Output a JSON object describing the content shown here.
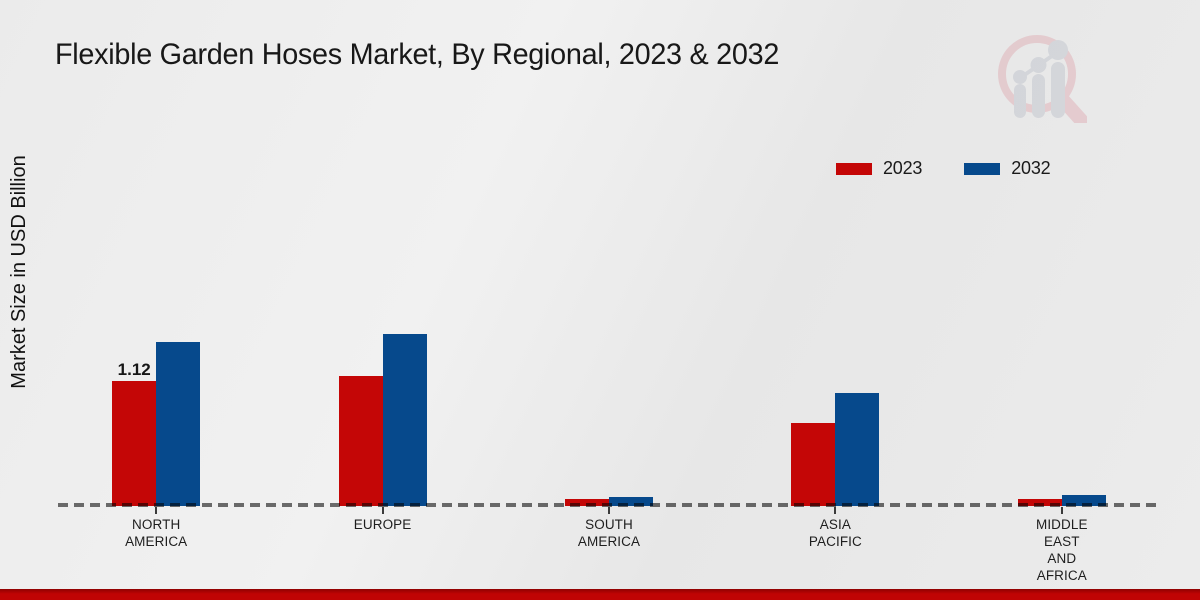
{
  "page": {
    "title": "Flexible Garden Hoses Market, By Regional, 2023 & 2032",
    "y_axis_label": "Market Size in USD Billion",
    "footer_bar_color": "#c00404",
    "watermark_icon": "magnifier-growth-chart-logo"
  },
  "legend": {
    "items": [
      {
        "label": "2023",
        "color": "#c40606"
      },
      {
        "label": "2032",
        "color": "#06498c"
      }
    ],
    "position": "top-right"
  },
  "chart_data": {
    "type": "bar",
    "title": "Flexible Garden Hoses Market, By Regional, 2023 & 2032",
    "xlabel": "",
    "ylabel": "Market Size in USD Billion",
    "categories": [
      "NORTH\nAMERICA",
      "EUROPE",
      "SOUTH\nAMERICA",
      "ASIA\nPACIFIC",
      "MIDDLE\nEAST\nAND\nAFRICA"
    ],
    "series": [
      {
        "name": "2023",
        "color": "#c40606",
        "values": [
          1.12,
          1.16,
          0.06,
          0.74,
          0.06
        ]
      },
      {
        "name": "2032",
        "color": "#06498c",
        "values": [
          1.46,
          1.54,
          0.08,
          1.01,
          0.1
        ]
      }
    ],
    "annotations": [
      {
        "series": 0,
        "category": 0,
        "text": "1.12"
      }
    ],
    "units": "USD Billion",
    "ylim": [
      0,
      1.6
    ],
    "grid": false,
    "y_axis_ticks_visible": false,
    "baseline_style": "dashed",
    "legend_position": "top-right"
  }
}
